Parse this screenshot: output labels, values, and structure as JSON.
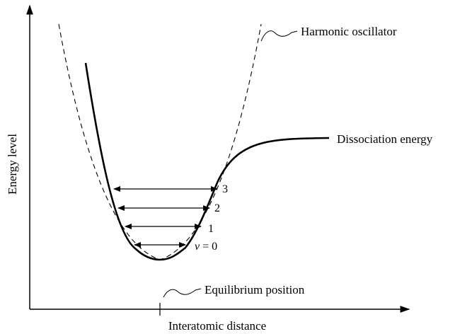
{
  "axes": {
    "x_label": "Interatomic distance",
    "y_label": "Energy level"
  },
  "labels": {
    "harmonic": "Harmonic oscillator",
    "dissociation": "Dissociation energy",
    "equilibrium": "Equilibrium position"
  },
  "levels": {
    "v0_var": "v",
    "v0_rest": " = 0",
    "l1": "1",
    "l2": "2",
    "l3": "3"
  }
}
